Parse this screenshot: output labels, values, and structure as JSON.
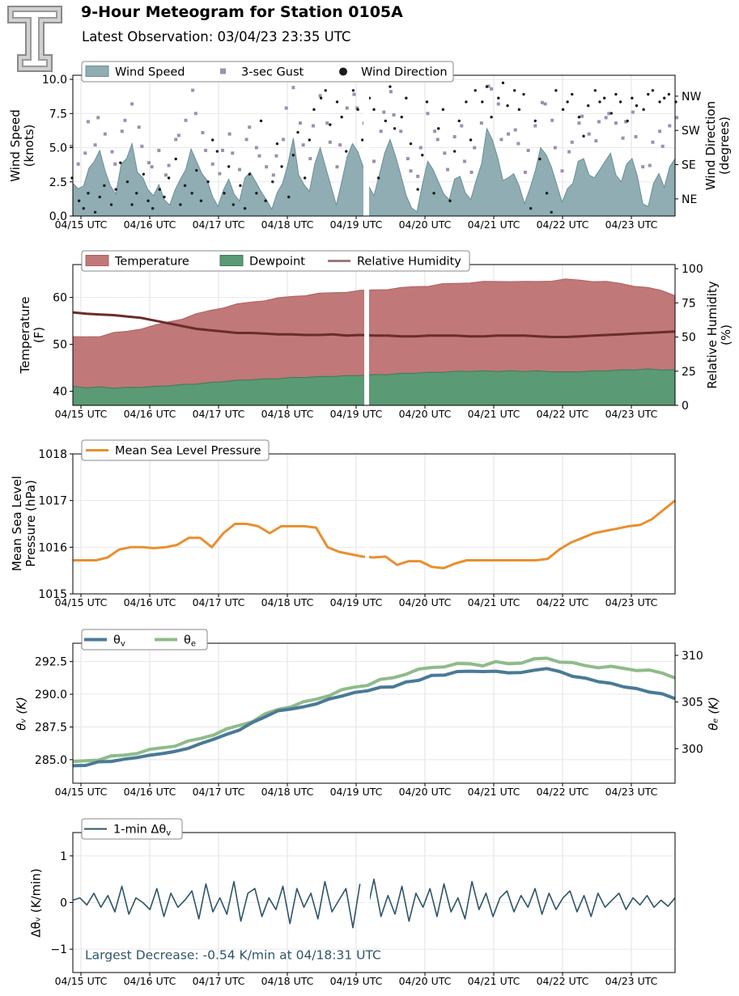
{
  "header": {
    "title": "9-Hour Meteogram for Station 0105A",
    "subtitle": "Latest Observation: 03/04/23 23:35 UTC"
  },
  "colors": {
    "wind_fill": "#8fadb3",
    "wind_line": "#6a8f95",
    "gust": "#9a90b0",
    "direction": "#1a1a1a",
    "temp_fill": "#c07878",
    "temp_line": "#b06060",
    "dew_fill": "#5a9a74",
    "dew_line": "#3e7a58",
    "rh": "#6b2c2c",
    "rh_legend": "#9a7b7b",
    "mslp": "#e8902f",
    "theta_v": "#4a7a96",
    "theta_e": "#8fbb8a",
    "dtheta": "#2f5566",
    "annotation": "#2f5566"
  },
  "chart_data": [
    {
      "id": "wind",
      "type": "area",
      "x_ticks": [
        "04/15 UTC",
        "04/16 UTC",
        "04/17 UTC",
        "04/18 UTC",
        "04/19 UTC",
        "04/20 UTC",
        "04/21 UTC",
        "04/22 UTC",
        "04/23 UTC"
      ],
      "ylabel": "Wind Speed\n(knots)",
      "ylabel_right": "Wind Direction\n(degrees)",
      "ylim": [
        0,
        10.3
      ],
      "y_ticks": [
        "0.0",
        "2.5",
        "5.0",
        "7.5",
        "10.0"
      ],
      "y2_ticks": [
        "NE",
        "SE",
        "SW",
        "NW"
      ],
      "y2_tick_values": [
        45,
        135,
        225,
        315
      ],
      "grid": true,
      "legend_position": "top-left",
      "legend": [
        "Wind Speed",
        "3-sec Gust",
        "Wind Direction"
      ],
      "series": [
        {
          "name": "Wind Speed",
          "type": "area",
          "values": [
            2.4,
            2.0,
            2.2,
            3.5,
            4.0,
            4.8,
            3.3,
            2.2,
            1.6,
            3.8,
            4.2,
            5.3,
            3.2,
            2.8,
            1.9,
            1.5,
            2.3,
            1.2,
            0.8,
            1.9,
            2.7,
            3.4,
            4.9,
            4.0,
            3.1,
            2.6,
            1.4,
            0.7,
            1.9,
            2.7,
            1.6,
            1.1,
            2.8,
            3.2,
            2.5,
            1.8,
            1.2,
            0.5,
            1.7,
            2.4,
            3.8,
            5.7,
            3.0,
            2.3,
            1.8,
            3.8,
            5.0,
            3.6,
            2.2,
            0.8,
            2.5,
            4.3,
            5.3,
            4.7,
            3.6,
            2.2,
            1.5,
            3.0,
            4.6,
            5.6,
            4.4,
            3.0,
            1.5,
            0.6,
            0.3,
            2.3,
            4.0,
            3.4,
            2.5,
            1.6,
            1.2,
            2.7,
            2.9,
            1.7,
            1.2,
            2.6,
            3.8,
            6.4,
            5.6,
            4.3,
            2.6,
            2.8,
            3.1,
            2.2,
            0.9,
            2.0,
            3.3,
            5.0,
            4.5,
            3.6,
            2.3,
            1.0,
            2.0,
            2.4,
            4.0,
            4.2,
            3.0,
            2.8,
            3.4,
            4.0,
            4.6,
            3.0,
            2.5,
            3.8,
            4.2,
            2.9,
            0.9,
            0.7,
            2.4,
            3.1,
            2.1,
            3.6,
            4.2
          ]
        },
        {
          "name": "3-sec Gust",
          "type": "scatter",
          "values": [
            5.1,
            3.8,
            4.6,
            6.9,
            5.2,
            7.2,
            6.0,
            4.7,
            3.8,
            6.2,
            7.0,
            8.2,
            6.5,
            5.1,
            3.9,
            3.6,
            4.8,
            3.0,
            3.7,
            5.6,
            5.9,
            7.0,
            9.2,
            7.5,
            6.1,
            4.8,
            3.8,
            3.1,
            4.8,
            6.0,
            4.6,
            3.4,
            5.6,
            6.5,
            5.0,
            4.4,
            3.6,
            3.0,
            4.4,
            5.6,
            7.9,
            9.4,
            6.8,
            5.2,
            4.2,
            6.6,
            8.8,
            6.8,
            5.4,
            3.6,
            5.2,
            7.9,
            8.9,
            7.9,
            6.8,
            4.8,
            4.0,
            6.2,
            7.6,
            9.1,
            7.4,
            6.2,
            4.2,
            3.3,
            2.9,
            5.0,
            7.5,
            6.2,
            5.6,
            4.6,
            3.4,
            5.8,
            6.6,
            4.0,
            3.2,
            5.0,
            6.8,
            9.5,
            9.3,
            8.2,
            5.6,
            6.0,
            6.3,
            5.3,
            3.2,
            4.8,
            6.6,
            8.3,
            8.2,
            7.0,
            5.0,
            3.3,
            4.7,
            5.4,
            6.8,
            7.3,
            6.0,
            5.5,
            6.9,
            7.2,
            7.5,
            6.8,
            5.7,
            6.9,
            7.6,
            5.8,
            3.6,
            3.7,
            5.4,
            6.2,
            5.1,
            6.6,
            7.2
          ]
        },
        {
          "name": "Wind Direction",
          "type": "scatter",
          "values": [
            100,
            40,
            20,
            60,
            10,
            50,
            80,
            30,
            70,
            140,
            90,
            30,
            60,
            110,
            40,
            20,
            70,
            50,
            100,
            150,
            30,
            80,
            60,
            120,
            40,
            90,
            200,
            170,
            60,
            130,
            30,
            80,
            20,
            110,
            60,
            250,
            40,
            90,
            190,
            130,
            50,
            160,
            220,
            100,
            200,
            280,
            310,
            330,
            240,
            300,
            260,
            170,
            330,
            280,
            200,
            310,
            280,
            100,
            250,
            340,
            230,
            260,
            310,
            190,
            70,
            160,
            300,
            60,
            230,
            280,
            40,
            170,
            250,
            300,
            200,
            330,
            300,
            340,
            260,
            310,
            350,
            290,
            330,
            280,
            320,
            20,
            250,
            150,
            60,
            10,
            330,
            280,
            300,
            320,
            260,
            210,
            290,
            330,
            300,
            310,
            270,
            320,
            300,
            250,
            310,
            290,
            280,
            320,
            330,
            300,
            310,
            320,
            300
          ]
        }
      ]
    },
    {
      "id": "thermo",
      "type": "area",
      "x_ticks": [
        "04/15 UTC",
        "04/16 UTC",
        "04/17 UTC",
        "04/18 UTC",
        "04/19 UTC",
        "04/20 UTC",
        "04/21 UTC",
        "04/22 UTC",
        "04/23 UTC"
      ],
      "ylabel": "Temperature\n(F)",
      "ylabel_right": "Relative Humidity\n(%)",
      "ylim": [
        37,
        67
      ],
      "y_ticks": [
        "40",
        "50",
        "60"
      ],
      "y2lim": [
        0,
        103
      ],
      "y2_ticks": [
        "0",
        "25",
        "50",
        "75",
        "100"
      ],
      "grid": true,
      "legend_position": "top-left",
      "legend": [
        "Temperature",
        "Dewpoint",
        "Relative Humidity"
      ],
      "series": [
        {
          "name": "Temperature",
          "type": "area",
          "values": [
            51.5,
            51.6,
            51.8,
            52.4,
            52.8,
            53.4,
            54.0,
            54.8,
            55.5,
            56.4,
            57.2,
            57.9,
            58.5,
            59.0,
            59.4,
            59.8,
            60.2,
            60.5,
            60.8,
            61.0,
            61.2,
            61.4,
            61.6,
            61.8,
            62.0,
            62.3,
            62.5,
            62.8,
            63.0,
            63.2,
            63.3,
            63.4,
            63.5,
            63.3,
            63.4,
            63.6,
            63.8,
            63.7,
            63.5,
            63.3,
            63.0,
            62.5,
            62.0,
            61.5,
            60.5
          ]
        },
        {
          "name": "Dewpoint",
          "type": "area",
          "values": [
            41.0,
            40.8,
            40.9,
            40.7,
            40.8,
            40.9,
            41.0,
            41.2,
            41.4,
            41.6,
            41.8,
            42.1,
            42.3,
            42.5,
            42.6,
            42.7,
            42.9,
            43.0,
            43.1,
            43.2,
            43.3,
            43.4,
            43.5,
            43.6,
            43.8,
            43.9,
            44.0,
            44.1,
            44.2,
            44.3,
            44.3,
            44.3,
            44.3,
            44.3,
            44.3,
            44.2,
            44.1,
            44.2,
            44.3,
            44.4,
            44.5,
            44.6,
            44.7,
            44.6,
            44.5
          ]
        },
        {
          "name": "Relative Humidity",
          "type": "line",
          "values": [
            68,
            67,
            66.5,
            66,
            65,
            64,
            62,
            60,
            58,
            56,
            55,
            54,
            53,
            53,
            52.5,
            52,
            52,
            51.5,
            51.5,
            52,
            51,
            51.5,
            51,
            51,
            50.5,
            50.5,
            51,
            51,
            51,
            50.5,
            50.5,
            51,
            51,
            51,
            50.5,
            50,
            50,
            50.5,
            51,
            51.5,
            52,
            52.5,
            53,
            53.5,
            54
          ]
        }
      ]
    },
    {
      "id": "pressure",
      "type": "line",
      "x_ticks": [
        "04/15 UTC",
        "04/16 UTC",
        "04/17 UTC",
        "04/18 UTC",
        "04/19 UTC",
        "04/20 UTC",
        "04/21 UTC",
        "04/22 UTC",
        "04/23 UTC"
      ],
      "ylabel": "Mean Sea Level\nPressure (hPa)",
      "ylim": [
        1015,
        1018
      ],
      "y_ticks": [
        "1015",
        "1016",
        "1017",
        "1018"
      ],
      "grid": true,
      "legend_position": "top-left",
      "legend": [
        "Mean Sea Level Pressure"
      ],
      "series": [
        {
          "name": "Mean Sea Level Pressure",
          "values": [
            1015.72,
            1015.72,
            1015.72,
            1015.78,
            1015.95,
            1016.0,
            1016.0,
            1015.98,
            1016.0,
            1016.05,
            1016.2,
            1016.2,
            1016.0,
            1016.3,
            1016.5,
            1016.5,
            1016.45,
            1016.3,
            1016.45,
            1016.45,
            1016.45,
            1016.42,
            1016.0,
            1015.9,
            1015.85,
            1015.8,
            1015.78,
            1015.8,
            1015.62,
            1015.7,
            1015.7,
            1015.58,
            1015.55,
            1015.65,
            1015.72,
            1015.72,
            1015.72,
            1015.72,
            1015.72,
            1015.72,
            1015.72,
            1015.75,
            1015.95,
            1016.1,
            1016.2,
            1016.3,
            1016.35,
            1016.4,
            1016.45,
            1016.48,
            1016.6,
            1016.8,
            1017.0
          ]
        }
      ]
    },
    {
      "id": "theta",
      "type": "line",
      "x_ticks": [
        "04/15 UTC",
        "04/16 UTC",
        "04/17 UTC",
        "04/18 UTC",
        "04/19 UTC",
        "04/20 UTC",
        "04/21 UTC",
        "04/22 UTC",
        "04/23 UTC"
      ],
      "ylabel": "θv (K)",
      "ylabel_right": "θe (K)",
      "ylim": [
        283.2,
        293.9
      ],
      "y_ticks": [
        "285.0",
        "287.5",
        "290.0",
        "292.5"
      ],
      "y2lim": [
        296.3,
        311.3
      ],
      "y2_ticks": [
        "300",
        "305",
        "310"
      ],
      "grid": true,
      "legend_position": "top-left",
      "legend": [
        "θv",
        "θe"
      ],
      "series": [
        {
          "name": "θv",
          "values": [
            284.5,
            284.6,
            284.8,
            284.9,
            285.0,
            285.2,
            285.3,
            285.5,
            285.6,
            285.9,
            286.2,
            286.6,
            286.9,
            287.3,
            287.8,
            288.3,
            288.7,
            288.9,
            289.0,
            289.3,
            289.6,
            289.9,
            290.1,
            290.3,
            290.5,
            290.6,
            290.9,
            291.1,
            291.4,
            291.5,
            291.7,
            291.8,
            291.7,
            291.8,
            291.6,
            291.7,
            291.8,
            292.0,
            291.7,
            291.4,
            291.2,
            291.0,
            290.8,
            290.6,
            290.4,
            290.2,
            290.0,
            289.7
          ]
        },
        {
          "name": "θe",
          "values": [
            298.5,
            298.7,
            298.9,
            299.1,
            299.3,
            299.6,
            299.8,
            300.1,
            300.4,
            300.7,
            301.1,
            301.6,
            302.0,
            302.5,
            303.0,
            303.6,
            304.2,
            304.6,
            304.9,
            305.3,
            305.8,
            306.2,
            306.6,
            306.9,
            307.3,
            307.6,
            308.1,
            308.4,
            308.7,
            308.9,
            309.0,
            309.1,
            309.0,
            309.2,
            309.1,
            309.3,
            309.5,
            309.7,
            309.4,
            309.1,
            308.9,
            308.8,
            308.7,
            308.6,
            308.5,
            308.3,
            308.1,
            307.7
          ]
        }
      ]
    },
    {
      "id": "delta",
      "type": "line",
      "x_ticks": [
        "04/15 UTC",
        "04/16 UTC",
        "04/17 UTC",
        "04/18 UTC",
        "04/19 UTC",
        "04/20 UTC",
        "04/21 UTC",
        "04/22 UTC",
        "04/23 UTC"
      ],
      "ylabel": "Δθv (K/min)",
      "ylim": [
        -1.5,
        1.5
      ],
      "y_ticks": [
        "−1",
        "0",
        "1"
      ],
      "grid": true,
      "legend_position": "top-left",
      "legend": [
        "1-min Δθv"
      ],
      "annotation": "Largest Decrease: -0.54 K/min at 04/18:31 UTC",
      "series": [
        {
          "name": "1-min Δθv",
          "values": [
            0.05,
            0.1,
            -0.05,
            0.2,
            -0.1,
            0.15,
            -0.2,
            0.35,
            -0.25,
            0.1,
            0.0,
            -0.15,
            0.3,
            -0.3,
            0.2,
            -0.1,
            0.05,
            0.25,
            -0.35,
            0.4,
            -0.2,
            0.1,
            -0.25,
            0.45,
            -0.4,
            0.2,
            0.3,
            -0.3,
            0.1,
            -0.15,
            0.35,
            -0.45,
            0.3,
            -0.1,
            0.2,
            -0.35,
            0.45,
            -0.2,
            0.05,
            0.3,
            -0.54,
            0.4,
            -0.2,
            0.5,
            -0.3,
            0.15,
            -0.25,
            0.35,
            -0.4,
            0.2,
            -0.1,
            0.3,
            -0.3,
            0.4,
            -0.2,
            0.1,
            -0.35,
            0.45,
            -0.15,
            0.2,
            -0.3,
            0.1,
            0.25,
            -0.2,
            0.15,
            -0.1,
            0.3,
            -0.25,
            0.2,
            -0.15,
            0.1,
            0.25,
            -0.2,
            0.15,
            -0.3,
            0.2,
            -0.1,
            0.05,
            0.2,
            -0.15,
            0.1,
            -0.05,
            0.15,
            -0.1,
            0.05,
            -0.08,
            0.1
          ]
        }
      ]
    }
  ]
}
